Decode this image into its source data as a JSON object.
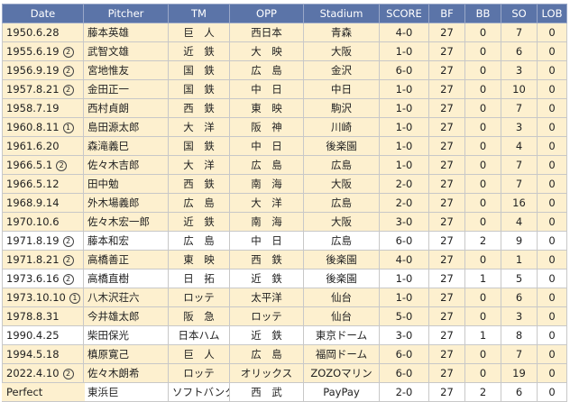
{
  "headers": [
    "Date",
    "Pitcher",
    "TM",
    "OPP",
    "Stadium",
    "SCORE",
    "BF",
    "BB",
    "SO",
    "LOB"
  ],
  "rows": [
    {
      "date": "1950.6.28",
      "mark": "",
      "pitcher": "藤本英雄",
      "tm": "巨　人",
      "opp": "西日本",
      "stadium": "青森",
      "score": "4-0",
      "bf": "27",
      "bb": "0",
      "so": "7",
      "lob": "0",
      "type": "perfect"
    },
    {
      "date": "1955.6.19",
      "mark": "2",
      "pitcher": "武智文雄",
      "tm": "近　鉄",
      "opp": "大　映",
      "stadium": "大阪",
      "score": "1-0",
      "bf": "27",
      "bb": "0",
      "so": "6",
      "lob": "0",
      "type": "perfect"
    },
    {
      "date": "1956.9.19",
      "mark": "2",
      "pitcher": "宮地惟友",
      "tm": "国　鉄",
      "opp": "広　島",
      "stadium": "金沢",
      "score": "6-0",
      "bf": "27",
      "bb": "0",
      "so": "3",
      "lob": "0",
      "type": "perfect"
    },
    {
      "date": "1957.8.21",
      "mark": "2",
      "pitcher": "金田正一",
      "tm": "国　鉄",
      "opp": "中　日",
      "stadium": "中日",
      "score": "1-0",
      "bf": "27",
      "bb": "0",
      "so": "10",
      "lob": "0",
      "type": "perfect"
    },
    {
      "date": "1958.7.19",
      "mark": "",
      "pitcher": "西村貞朗",
      "tm": "西　鉄",
      "opp": "東　映",
      "stadium": "駒沢",
      "score": "1-0",
      "bf": "27",
      "bb": "0",
      "so": "7",
      "lob": "0",
      "type": "perfect"
    },
    {
      "date": "1960.8.11",
      "mark": "1",
      "pitcher": "島田源太郎",
      "tm": "大　洋",
      "opp": "阪　神",
      "stadium": "川崎",
      "score": "1-0",
      "bf": "27",
      "bb": "0",
      "so": "3",
      "lob": "0",
      "type": "perfect"
    },
    {
      "date": "1961.6.20",
      "mark": "",
      "pitcher": "森滝義巳",
      "tm": "国　鉄",
      "opp": "中　日",
      "stadium": "後楽園",
      "score": "1-0",
      "bf": "27",
      "bb": "0",
      "so": "4",
      "lob": "0",
      "type": "perfect"
    },
    {
      "date": "1966.5.1",
      "mark": "2",
      "pitcher": "佐々木吉郎",
      "tm": "大　洋",
      "opp": "広　島",
      "stadium": "広島",
      "score": "1-0",
      "bf": "27",
      "bb": "0",
      "so": "7",
      "lob": "0",
      "type": "perfect"
    },
    {
      "date": "1966.5.12",
      "mark": "",
      "pitcher": "田中勉",
      "tm": "西　鉄",
      "opp": "南　海",
      "stadium": "大阪",
      "score": "2-0",
      "bf": "27",
      "bb": "0",
      "so": "7",
      "lob": "0",
      "type": "perfect"
    },
    {
      "date": "1968.9.14",
      "mark": "",
      "pitcher": "外木場義郎",
      "tm": "広　島",
      "opp": "大　洋",
      "stadium": "広島",
      "score": "2-0",
      "bf": "27",
      "bb": "0",
      "so": "16",
      "lob": "0",
      "type": "perfect"
    },
    {
      "date": "1970.10.6",
      "mark": "",
      "pitcher": "佐々木宏一郎",
      "tm": "近　鉄",
      "opp": "南　海",
      "stadium": "大阪",
      "score": "3-0",
      "bf": "27",
      "bb": "0",
      "so": "4",
      "lob": "0",
      "type": "perfect"
    },
    {
      "date": "1971.8.19",
      "mark": "2",
      "pitcher": "藤本和宏",
      "tm": "広　島",
      "opp": "中　日",
      "stadium": "広島",
      "score": "6-0",
      "bf": "27",
      "bb": "2",
      "so": "9",
      "lob": "0",
      "type": "nohit"
    },
    {
      "date": "1971.8.21",
      "mark": "2",
      "pitcher": "高橋善正",
      "tm": "東　映",
      "opp": "西　鉄",
      "stadium": "後楽園",
      "score": "4-0",
      "bf": "27",
      "bb": "0",
      "so": "1",
      "lob": "0",
      "type": "perfect"
    },
    {
      "date": "1973.6.16",
      "mark": "2",
      "pitcher": "高橋直樹",
      "tm": "日　拓",
      "opp": "近　鉄",
      "stadium": "後楽園",
      "score": "1-0",
      "bf": "27",
      "bb": "1",
      "so": "5",
      "lob": "0",
      "type": "nohit"
    },
    {
      "date": "1973.10.10",
      "mark": "1",
      "pitcher": "八木沢荘六",
      "tm": "ロッテ",
      "opp": "太平洋",
      "stadium": "仙台",
      "score": "1-0",
      "bf": "27",
      "bb": "0",
      "so": "6",
      "lob": "0",
      "type": "perfect"
    },
    {
      "date": "1978.8.31",
      "mark": "",
      "pitcher": "今井雄太郎",
      "tm": "阪　急",
      "opp": "ロッテ",
      "stadium": "仙台",
      "score": "5-0",
      "bf": "27",
      "bb": "0",
      "so": "3",
      "lob": "0",
      "type": "perfect"
    },
    {
      "date": "1990.4.25",
      "mark": "",
      "pitcher": "柴田保光",
      "tm": "日本ハム",
      "opp": "近　鉄",
      "stadium": "東京ドーム",
      "score": "3-0",
      "bf": "27",
      "bb": "1",
      "so": "8",
      "lob": "0",
      "type": "nohit"
    },
    {
      "date": "1994.5.18",
      "mark": "",
      "pitcher": "槙原寛己",
      "tm": "巨　人",
      "opp": "広　島",
      "stadium": "福岡ドーム",
      "score": "6-0",
      "bf": "27",
      "bb": "0",
      "so": "7",
      "lob": "0",
      "type": "perfect"
    },
    {
      "date": "2022.4.10",
      "mark": "2",
      "pitcher": "佐々木朗希",
      "tm": "ロッテ",
      "opp": "オリックス",
      "stadium": "ZOZOマリン",
      "score": "6-0",
      "bf": "27",
      "bb": "0",
      "so": "19",
      "lob": "0",
      "type": "perfect"
    },
    {
      "date": "2022.5.11",
      "mark": "",
      "pitcher": "東浜巨",
      "tm": "ソフトバンク",
      "opp": "西　武",
      "stadium": "PayPay",
      "score": "2-0",
      "bf": "27",
      "bb": "2",
      "so": "6",
      "lob": "0",
      "type": "nohit"
    }
  ],
  "legend": {
    "label": "Perfect",
    "color": "#fdf0cf"
  }
}
